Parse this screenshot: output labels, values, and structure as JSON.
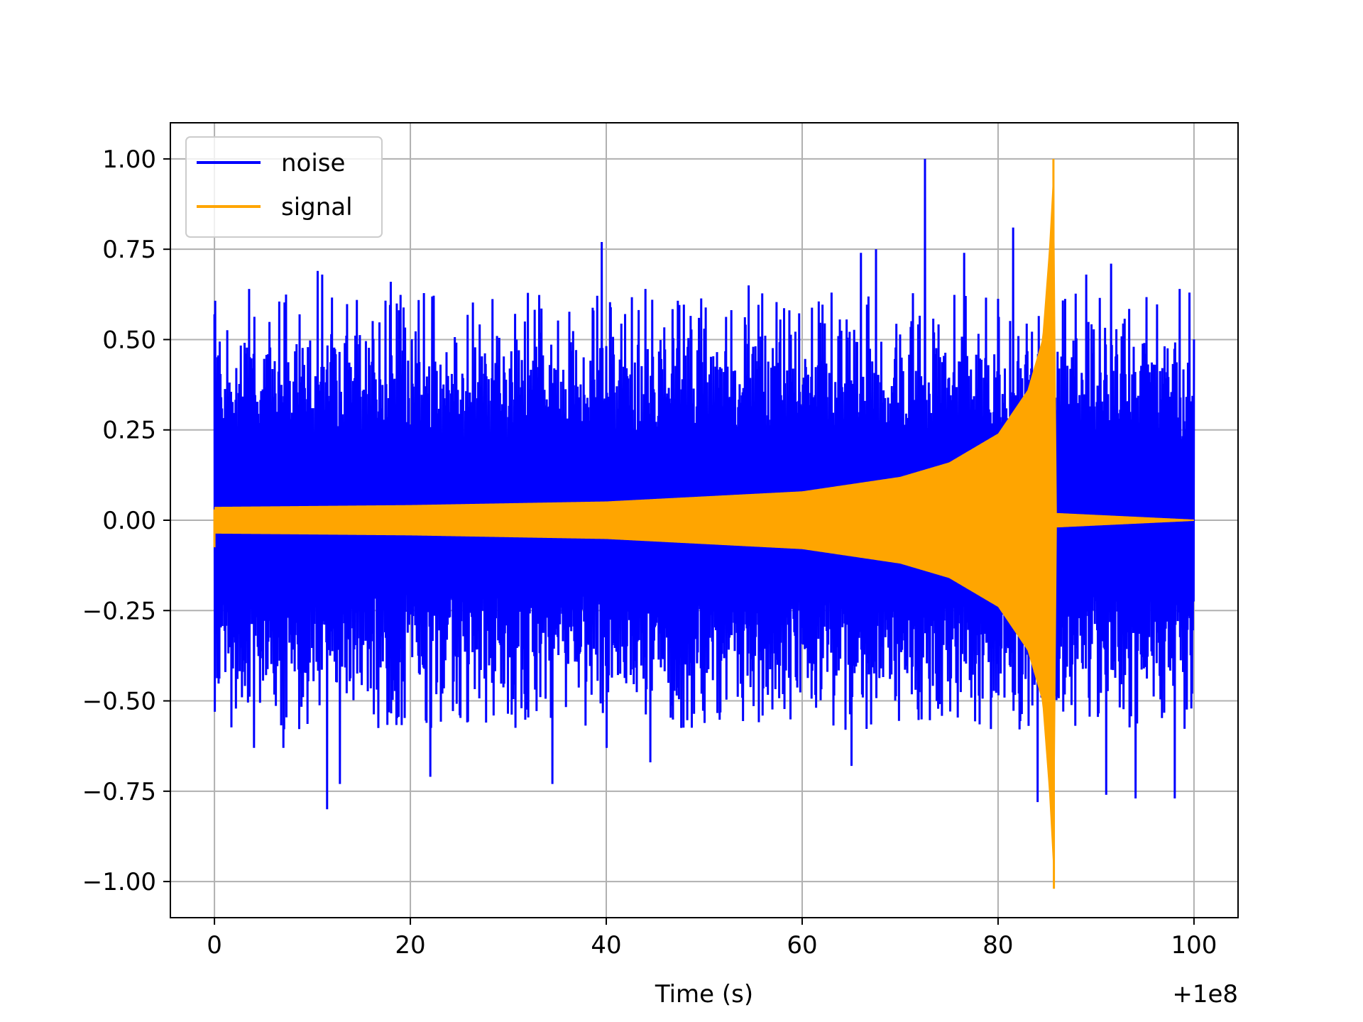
{
  "chart_data": {
    "type": "line",
    "title": "",
    "xlabel": "Time (s)",
    "ylabel": "",
    "x_offset_label": "+1e8",
    "xlim": [
      -4.5,
      104.5
    ],
    "ylim": [
      -1.1,
      1.1
    ],
    "x_ticks": [
      0,
      20,
      40,
      60,
      80,
      100
    ],
    "x_tick_labels": [
      "0",
      "20",
      "40",
      "60",
      "80",
      "100"
    ],
    "y_ticks": [
      1.0,
      0.75,
      0.5,
      0.25,
      0.0,
      -0.25,
      -0.5,
      -0.75,
      -1.0
    ],
    "y_tick_labels": [
      "1.00",
      "0.75",
      "0.50",
      "0.25",
      "0.00",
      "−0.25",
      "−0.50",
      "−0.75",
      "−1.00"
    ],
    "grid": true,
    "legend_position": "top-left",
    "series": [
      {
        "name": "noise",
        "color": "#0000ff",
        "description_values": {
          "t_start": 0,
          "t_end": 100,
          "typical_envelope": 0.45,
          "max": 1.0,
          "max_at": 72.5,
          "min": -0.8,
          "min_at": 11.5
        },
        "peaks_up": [
          [
            0,
            0.57
          ],
          [
            3.5,
            0.64
          ],
          [
            10.5,
            0.69
          ],
          [
            11,
            0.68
          ],
          [
            18,
            0.66
          ],
          [
            39.5,
            0.77
          ],
          [
            44,
            0.64
          ],
          [
            54.5,
            0.65
          ],
          [
            63,
            0.63
          ],
          [
            66,
            0.74
          ],
          [
            67.5,
            0.75
          ],
          [
            72.5,
            1.0
          ],
          [
            76.5,
            0.74
          ],
          [
            81.5,
            0.81
          ],
          [
            89,
            0.68
          ],
          [
            91.5,
            0.71
          ],
          [
            98.5,
            0.64
          ],
          [
            99.5,
            0.63
          ]
        ],
        "peaks_down": [
          [
            0,
            -0.53
          ],
          [
            4,
            -0.63
          ],
          [
            7,
            -0.63
          ],
          [
            11.5,
            -0.8
          ],
          [
            12.8,
            -0.73
          ],
          [
            22,
            -0.71
          ],
          [
            34.5,
            -0.73
          ],
          [
            40,
            -0.63
          ],
          [
            44.5,
            -0.67
          ],
          [
            65,
            -0.68
          ],
          [
            84,
            -0.78
          ],
          [
            91,
            -0.76
          ],
          [
            94,
            -0.77
          ],
          [
            98,
            -0.77
          ]
        ]
      },
      {
        "name": "signal",
        "color": "#ffa500",
        "description_values": {
          "t_start": 0,
          "t_merger": 85.7,
          "initial_amplitude": 0.04,
          "peak_amplitude": 1.0,
          "post_merger_amplitude": 0.002
        },
        "envelope_points": [
          [
            0,
            0.037
          ],
          [
            20,
            0.042
          ],
          [
            40,
            0.052
          ],
          [
            60,
            0.08
          ],
          [
            70,
            0.12
          ],
          [
            75,
            0.16
          ],
          [
            80,
            0.24
          ],
          [
            83,
            0.36
          ],
          [
            84.5,
            0.5
          ],
          [
            85.2,
            0.75
          ],
          [
            85.7,
            1.0
          ],
          [
            86.0,
            0.02
          ],
          [
            100,
            0.002
          ]
        ]
      }
    ]
  }
}
